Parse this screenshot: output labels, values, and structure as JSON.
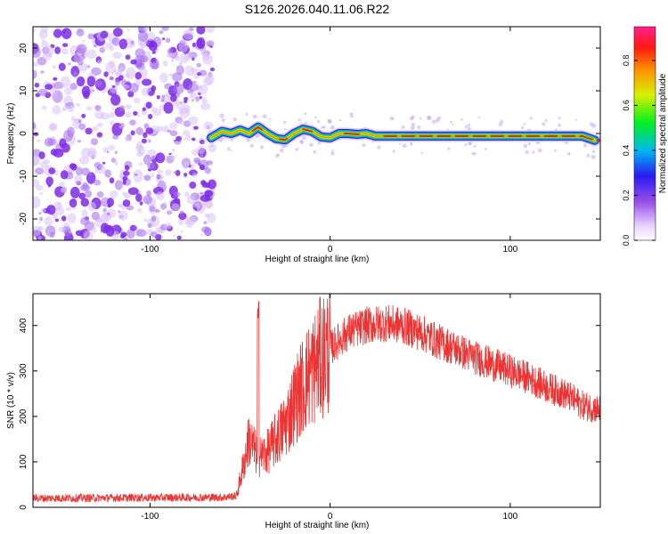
{
  "title": "S126.2026.040.11.06.R22",
  "spectrogram": {
    "type": "heatmap",
    "xlabel": "Height of straight line (km)",
    "ylabel": "Frequency (Hz)",
    "xlim": [
      -165,
      150
    ],
    "ylim": [
      -25,
      25
    ],
    "xticks": [
      -100,
      0,
      100
    ],
    "yticks": [
      -20,
      -10,
      0,
      10,
      20
    ],
    "noise_region_x": [
      -165,
      -65
    ],
    "track": {
      "x": [
        -66,
        -60,
        -55,
        -50,
        -45,
        -40,
        -35,
        -30,
        -25,
        -20,
        -15,
        -10,
        -5,
        0,
        5,
        10,
        15,
        20,
        25,
        30,
        40,
        60,
        80,
        100,
        120,
        140,
        147
      ],
      "freq": [
        -1.0,
        0.5,
        0.0,
        0.8,
        0.0,
        1.5,
        0.0,
        -1.2,
        -1.5,
        0.0,
        1.0,
        0.5,
        -0.8,
        -1.0,
        0.0,
        0.0,
        -0.2,
        0.0,
        -0.6,
        -0.6,
        -0.6,
        -0.6,
        -0.6,
        -0.6,
        -0.6,
        -0.6,
        -1.6
      ]
    },
    "colorbar": {
      "label": "Normalized spectral amplitude",
      "ticks": [
        "0.0",
        "0.2",
        "0.4",
        "0.6",
        "0.8"
      ],
      "range": [
        0,
        0.95
      ]
    }
  },
  "snr": {
    "type": "line",
    "xlabel": "Height of straight line (km)",
    "ylabel": "SNR (10 * v/v)",
    "xlim": [
      -165,
      150
    ],
    "ylim": [
      0,
      470
    ],
    "xticks": [
      -100,
      0,
      100
    ],
    "yticks": [
      0,
      100,
      200,
      300,
      400
    ],
    "line_color": "#ee3333",
    "baseline_x": [
      -165,
      -52
    ],
    "baseline_value": 20,
    "envelope": {
      "x": [
        -165,
        -60,
        -52,
        -50,
        -45,
        -40,
        -35,
        -30,
        -25,
        -20,
        -15,
        -10,
        -5,
        0,
        10,
        20,
        30,
        40,
        50,
        60,
        70,
        80,
        90,
        100,
        110,
        120,
        130,
        140,
        150
      ],
      "y": [
        20,
        22,
        25,
        60,
        150,
        110,
        120,
        150,
        180,
        230,
        270,
        300,
        330,
        350,
        385,
        400,
        405,
        400,
        385,
        365,
        348,
        330,
        315,
        300,
        285,
        265,
        250,
        225,
        215
      ]
    },
    "spike": {
      "x": -40,
      "y": 455
    }
  }
}
